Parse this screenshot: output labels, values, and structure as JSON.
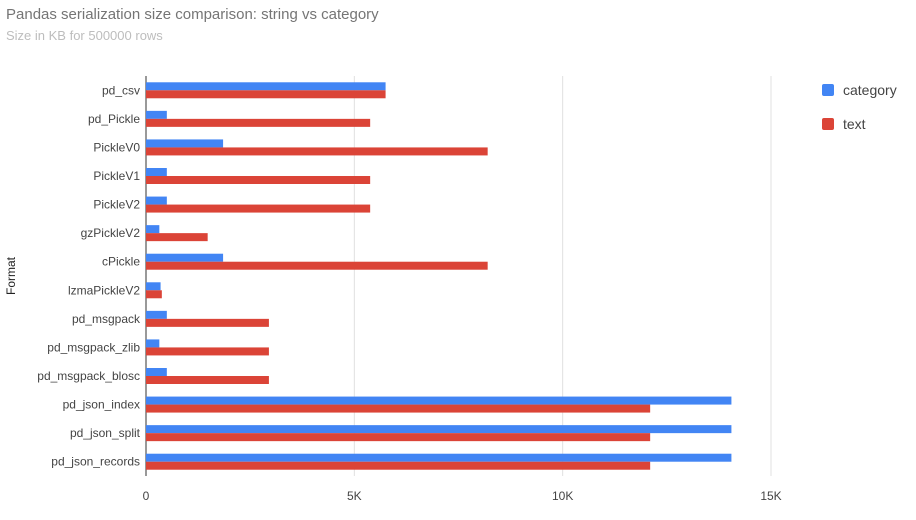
{
  "chart_data": {
    "type": "bar",
    "orientation": "horizontal",
    "title": "Pandas serialization size comparison: string vs category",
    "subtitle": "Size in KB for 500000 rows",
    "ylabel": "Format",
    "xlabel": "",
    "xlim": [
      0,
      18000
    ],
    "xticks": [
      0,
      5000,
      10000,
      15000
    ],
    "xtick_labels": [
      "0",
      "5K",
      "10K",
      "15K"
    ],
    "grid": true,
    "legend_position": "right",
    "categories": [
      "pd_csv",
      "pd_Pickle",
      "PickleV0",
      "PickleV1",
      "PickleV2",
      "gzPickleV2",
      "cPickle",
      "lzmaPickleV2",
      "pd_msgpack",
      "pd_msgpack_zlib",
      "pd_msgpack_blosc",
      "pd_json_index",
      "pd_json_split",
      "pd_json_records"
    ],
    "series": [
      {
        "name": "category",
        "color": "#4285f4",
        "values": [
          5750,
          500,
          1850,
          500,
          500,
          320,
          1850,
          350,
          500,
          320,
          500,
          14050,
          14050,
          14050
        ]
      },
      {
        "name": "text",
        "color": "#db4437",
        "values": [
          5750,
          5380,
          8200,
          5380,
          5380,
          1480,
          8200,
          380,
          2950,
          2950,
          2950,
          12100,
          12100,
          12100
        ]
      }
    ]
  }
}
